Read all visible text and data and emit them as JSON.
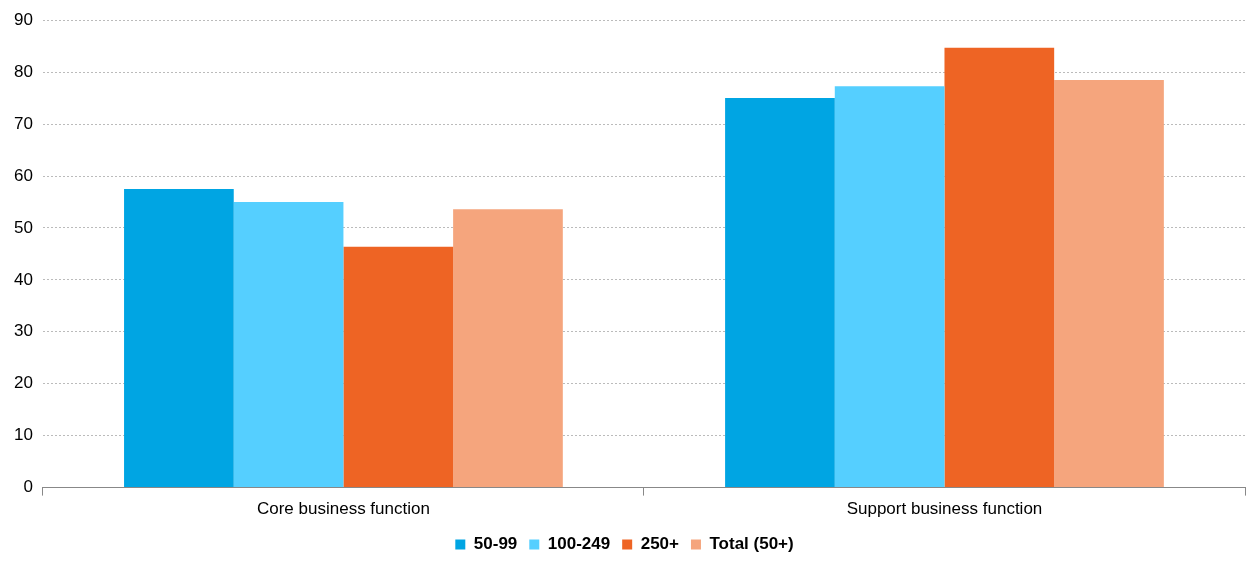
{
  "chart_data": {
    "type": "bar",
    "categories": [
      "Core business function",
      "Support business function"
    ],
    "series": [
      {
        "name": "50-99",
        "color": "#00a5e3",
        "values": [
          57.5,
          75.0
        ]
      },
      {
        "name": "100-249",
        "color": "#55cfff",
        "values": [
          55.0,
          77.3
        ]
      },
      {
        "name": "250+",
        "color": "#ee6424",
        "values": [
          46.4,
          84.7
        ]
      },
      {
        "name": "Total (50+)",
        "color": "#f5a57d",
        "values": [
          53.6,
          78.5
        ]
      }
    ],
    "ylim": [
      0,
      90
    ],
    "yticks": [
      0,
      10,
      20,
      30,
      40,
      50,
      60,
      70,
      80,
      90
    ],
    "grid": "y",
    "legend": "bottom"
  }
}
